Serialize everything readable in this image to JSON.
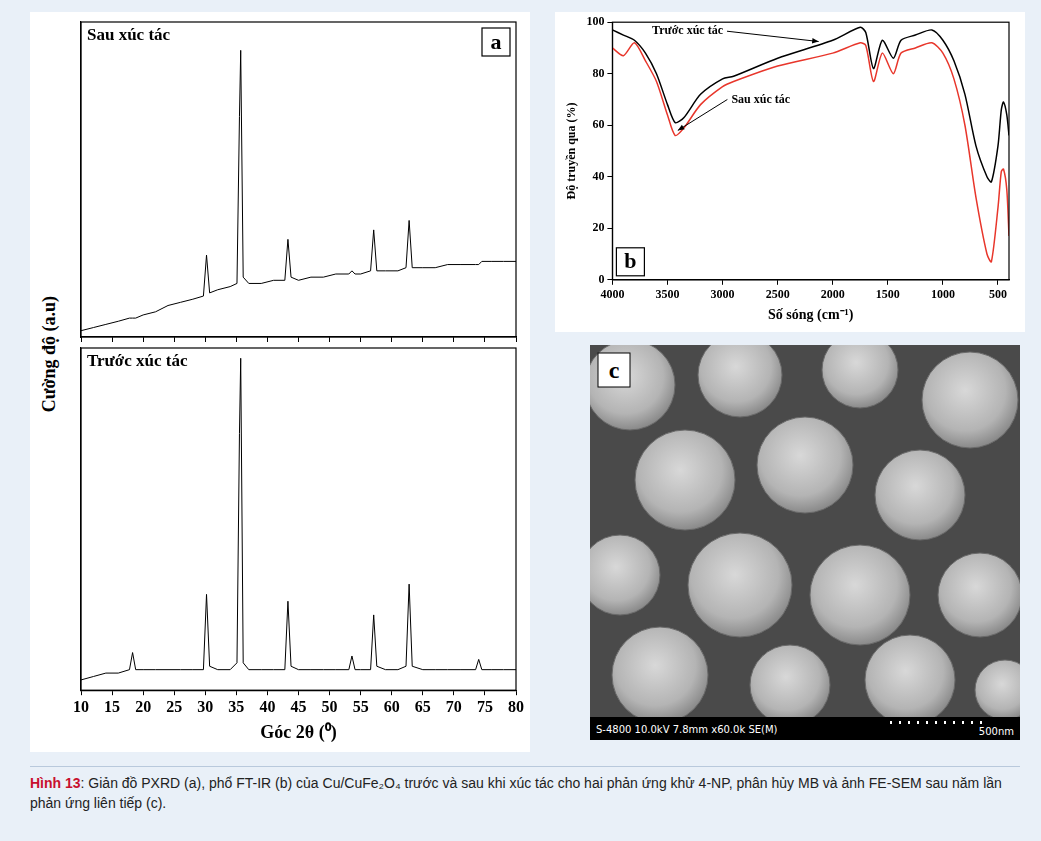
{
  "chart_data": [
    {
      "type": "line",
      "panel": "a",
      "title": "Sau xúc tác",
      "y_label": "Cường độ (a.u)",
      "x": [
        10,
        12,
        14,
        16,
        17.8,
        18.3,
        18.8,
        20,
        22,
        24,
        26,
        28,
        29.7,
        30.2,
        30.7,
        32,
        34,
        35.1,
        35.5,
        35.7,
        36.1,
        37,
        39,
        41,
        42.8,
        43.3,
        43.8,
        45,
        47,
        49,
        51,
        53.1,
        53.6,
        54.1,
        55,
        56.6,
        57.1,
        57.6,
        59,
        61,
        62.3,
        62.8,
        63.3,
        65,
        67,
        69,
        71,
        73.5,
        74,
        74.5,
        76,
        78,
        80
      ],
      "values": [
        2,
        3,
        4,
        5,
        6,
        6,
        6,
        7,
        8,
        10,
        11,
        12,
        13,
        26,
        14,
        15,
        16,
        17,
        70,
        91,
        19,
        17,
        17,
        18,
        18,
        31,
        19,
        18,
        19,
        19,
        20,
        20,
        21,
        20,
        20,
        21,
        34,
        21,
        21,
        21,
        22,
        37,
        22,
        22,
        22,
        23,
        23,
        23,
        23,
        24,
        24,
        24,
        24
      ],
      "color": "#000000",
      "xlim": [
        10,
        80
      ],
      "xticks": [
        10,
        15,
        20,
        25,
        30,
        35,
        40,
        45,
        50,
        55,
        60,
        65,
        70,
        75,
        80
      ],
      "ylim": [
        0,
        100
      ],
      "grid": false,
      "tick_labels": false
    },
    {
      "type": "line",
      "title": "Trước xúc tác",
      "x_label": "Góc 2θ (⁰)",
      "x": [
        10,
        12,
        14,
        16,
        17.8,
        18.3,
        18.8,
        20,
        22,
        24,
        26,
        28,
        29.7,
        30.2,
        30.7,
        32,
        34,
        35.1,
        35.5,
        35.7,
        36.1,
        37,
        39,
        41,
        42.8,
        43.3,
        43.8,
        45,
        47,
        49,
        51,
        53.1,
        53.6,
        54.1,
        55,
        56.6,
        57.1,
        57.6,
        59,
        61,
        62.3,
        62.8,
        63.3,
        65,
        67,
        69,
        71,
        73.5,
        74,
        74.5,
        76,
        78,
        80
      ],
      "values": [
        3,
        4,
        5,
        5,
        6,
        11,
        6,
        6,
        6,
        6,
        6,
        6,
        6,
        28,
        7,
        6,
        6,
        8,
        75,
        97,
        8,
        6,
        6,
        6,
        6,
        26,
        7,
        6,
        6,
        6,
        6,
        6,
        10,
        6,
        6,
        6,
        22,
        7,
        6,
        6,
        7,
        31,
        7,
        6,
        6,
        6,
        6,
        6,
        9,
        6,
        6,
        6,
        6
      ],
      "color": "#000000",
      "xlim": [
        10,
        80
      ],
      "xticks": [
        10,
        15,
        20,
        25,
        30,
        35,
        40,
        45,
        50,
        55,
        60,
        65,
        70,
        75,
        80
      ],
      "ylim": [
        0,
        100
      ],
      "grid": false,
      "tick_labels": "x"
    },
    {
      "type": "line",
      "panel": "b",
      "x_label": "Số sóng (cm⁻¹)",
      "y_label": "Độ truyền qua (%)",
      "x": [
        4000,
        3900,
        3800,
        3700,
        3600,
        3500,
        3430,
        3350,
        3200,
        3000,
        2900,
        2500,
        2000,
        1750,
        1700,
        1630,
        1550,
        1450,
        1380,
        1250,
        1100,
        1000,
        900,
        800,
        700,
        600,
        560,
        500,
        470,
        450,
        420,
        400
      ],
      "series": [
        {
          "name": "Trước xúc tác",
          "color": "#000000",
          "values": [
            97,
            95,
            93,
            88,
            80,
            68,
            61,
            63,
            72,
            78,
            79,
            86,
            93,
            98,
            96,
            82,
            93,
            86,
            93,
            95,
            97,
            93,
            85,
            72,
            52,
            40,
            38,
            52,
            66,
            69,
            64,
            56
          ]
        },
        {
          "name": "Sau xúc tác",
          "color": "#e8362b",
          "values": [
            90,
            87,
            92,
            85,
            77,
            64,
            56,
            59,
            68,
            75,
            77,
            83,
            88,
            92,
            91,
            77,
            88,
            80,
            88,
            90,
            92,
            88,
            78,
            60,
            32,
            10,
            7,
            28,
            42,
            43,
            35,
            17
          ]
        }
      ],
      "xlim": [
        4000,
        400
      ],
      "xticks": [
        4000,
        3500,
        3000,
        2500,
        2000,
        1500,
        1000,
        500
      ],
      "ylim": [
        0,
        100
      ],
      "yticks": [
        0,
        20,
        40,
        60,
        80,
        100
      ],
      "grid": false
    }
  ],
  "image": {
    "panel": "c",
    "info": "S-4800 10.0kV 7.8mm x60.0k SE(M)",
    "scale_bar": "500nm"
  },
  "caption": {
    "label": "Hình 13",
    "text": ": Giản đồ PXRD (a), phổ FT-IR (b) của Cu/CuFe₂O₄ trước và sau khi xúc tác cho hai phản ứng khử 4-NP, phân hủy MB và ảnh FE-SEM sau năm lần phản ứng liên tiếp (c)."
  }
}
